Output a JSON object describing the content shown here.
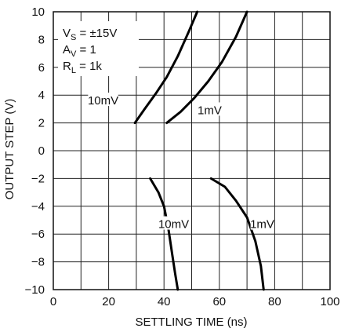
{
  "chart_data": {
    "type": "line",
    "title": "",
    "xlabel": "SETTLING TIME (ns)",
    "ylabel": "OUTPUT STEP (V)",
    "xlim": [
      0,
      100
    ],
    "ylim": [
      -10,
      10
    ],
    "xticks": [
      0,
      20,
      40,
      60,
      80,
      100
    ],
    "yticks": [
      10,
      8,
      6,
      4,
      2,
      0,
      -2,
      -4,
      -6,
      -8,
      -10
    ],
    "x_grid_step": 10,
    "y_grid_step": 2,
    "grid": true,
    "conditions": {
      "vs_main": "V",
      "vs_sub": "S",
      "vs_rest": " = ±15V",
      "av_main": "A",
      "av_sub": "V",
      "av_rest": " = 1",
      "rl_main": "R",
      "rl_sub": "L",
      "rl_rest": " = 1k"
    },
    "series": [
      {
        "points": [
          [
            29.5,
            2
          ],
          [
            33,
            3
          ],
          [
            37,
            4.1
          ],
          [
            41,
            5.3
          ],
          [
            45,
            6.8
          ],
          [
            49,
            8.6
          ],
          [
            52,
            10
          ]
        ]
      },
      {
        "points": [
          [
            41,
            2
          ],
          [
            46,
            2.8
          ],
          [
            51,
            3.8
          ],
          [
            56,
            5
          ],
          [
            61,
            6.4
          ],
          [
            66,
            8.2
          ],
          [
            70,
            10
          ]
        ]
      },
      {
        "points": [
          [
            35,
            -2
          ],
          [
            38,
            -3
          ],
          [
            40,
            -4
          ],
          [
            41.5,
            -5.5
          ],
          [
            43,
            -7.5
          ],
          [
            44,
            -8.8
          ],
          [
            45,
            -10
          ]
        ]
      },
      {
        "points": [
          [
            57,
            -2
          ],
          [
            62,
            -2.6
          ],
          [
            66,
            -3.6
          ],
          [
            70,
            -4.8
          ],
          [
            73,
            -6.5
          ],
          [
            75,
            -8.3
          ],
          [
            76,
            -10
          ]
        ]
      }
    ],
    "annotations": [
      {
        "text": "10mV",
        "x": 18,
        "y": 3.5
      },
      {
        "text": "1mV",
        "x": 56.5,
        "y": 2.8
      },
      {
        "text": "10mV",
        "x": 43.5,
        "y": -5.4
      },
      {
        "text": "1mV",
        "x": 75.5,
        "y": -5.4
      }
    ]
  }
}
